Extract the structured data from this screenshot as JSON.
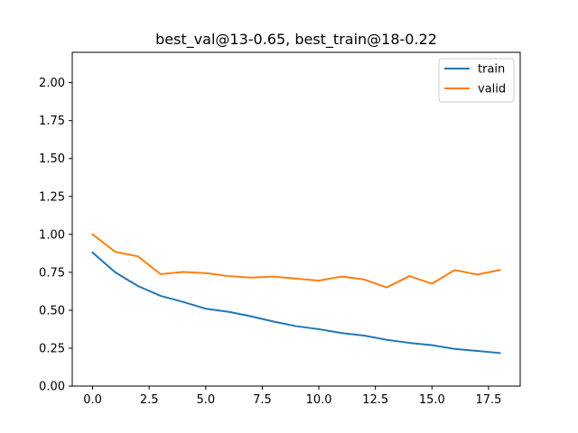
{
  "chart_data": {
    "type": "line",
    "title": "best_val@13-0.65, best_train@18-0.22",
    "xlabel": "",
    "ylabel": "",
    "x": [
      0,
      1,
      2,
      3,
      4,
      5,
      6,
      7,
      8,
      9,
      10,
      11,
      12,
      13,
      14,
      15,
      16,
      17,
      18
    ],
    "xlim": [
      -0.9,
      18.9
    ],
    "ylim": [
      0,
      2.2
    ],
    "xticks": [
      0,
      2.5,
      5,
      7.5,
      10,
      12.5,
      15,
      17.5
    ],
    "xtick_labels": [
      "0.0",
      "2.5",
      "5.0",
      "7.5",
      "10.0",
      "12.5",
      "15.0",
      "17.5"
    ],
    "yticks": [
      0,
      0.25,
      0.5,
      0.75,
      1.0,
      1.25,
      1.5,
      1.75,
      2.0
    ],
    "ytick_labels": [
      "0.00",
      "0.25",
      "0.50",
      "0.75",
      "1.00",
      "1.25",
      "1.50",
      "1.75",
      "2.00"
    ],
    "grid": false,
    "legend_position": "top-right",
    "series": [
      {
        "name": "train",
        "color": "#1f77b4",
        "values": [
          0.88,
          0.75,
          0.66,
          0.595,
          0.555,
          0.51,
          0.49,
          0.46,
          0.425,
          0.395,
          0.375,
          0.35,
          0.333,
          0.305,
          0.285,
          0.27,
          0.245,
          0.232,
          0.218
        ]
      },
      {
        "name": "valid",
        "color": "#ff7f0e",
        "values": [
          1.0,
          0.885,
          0.855,
          0.738,
          0.752,
          0.745,
          0.725,
          0.715,
          0.722,
          0.708,
          0.695,
          0.722,
          0.703,
          0.65,
          0.725,
          0.675,
          0.765,
          0.735,
          0.765
        ]
      }
    ]
  }
}
